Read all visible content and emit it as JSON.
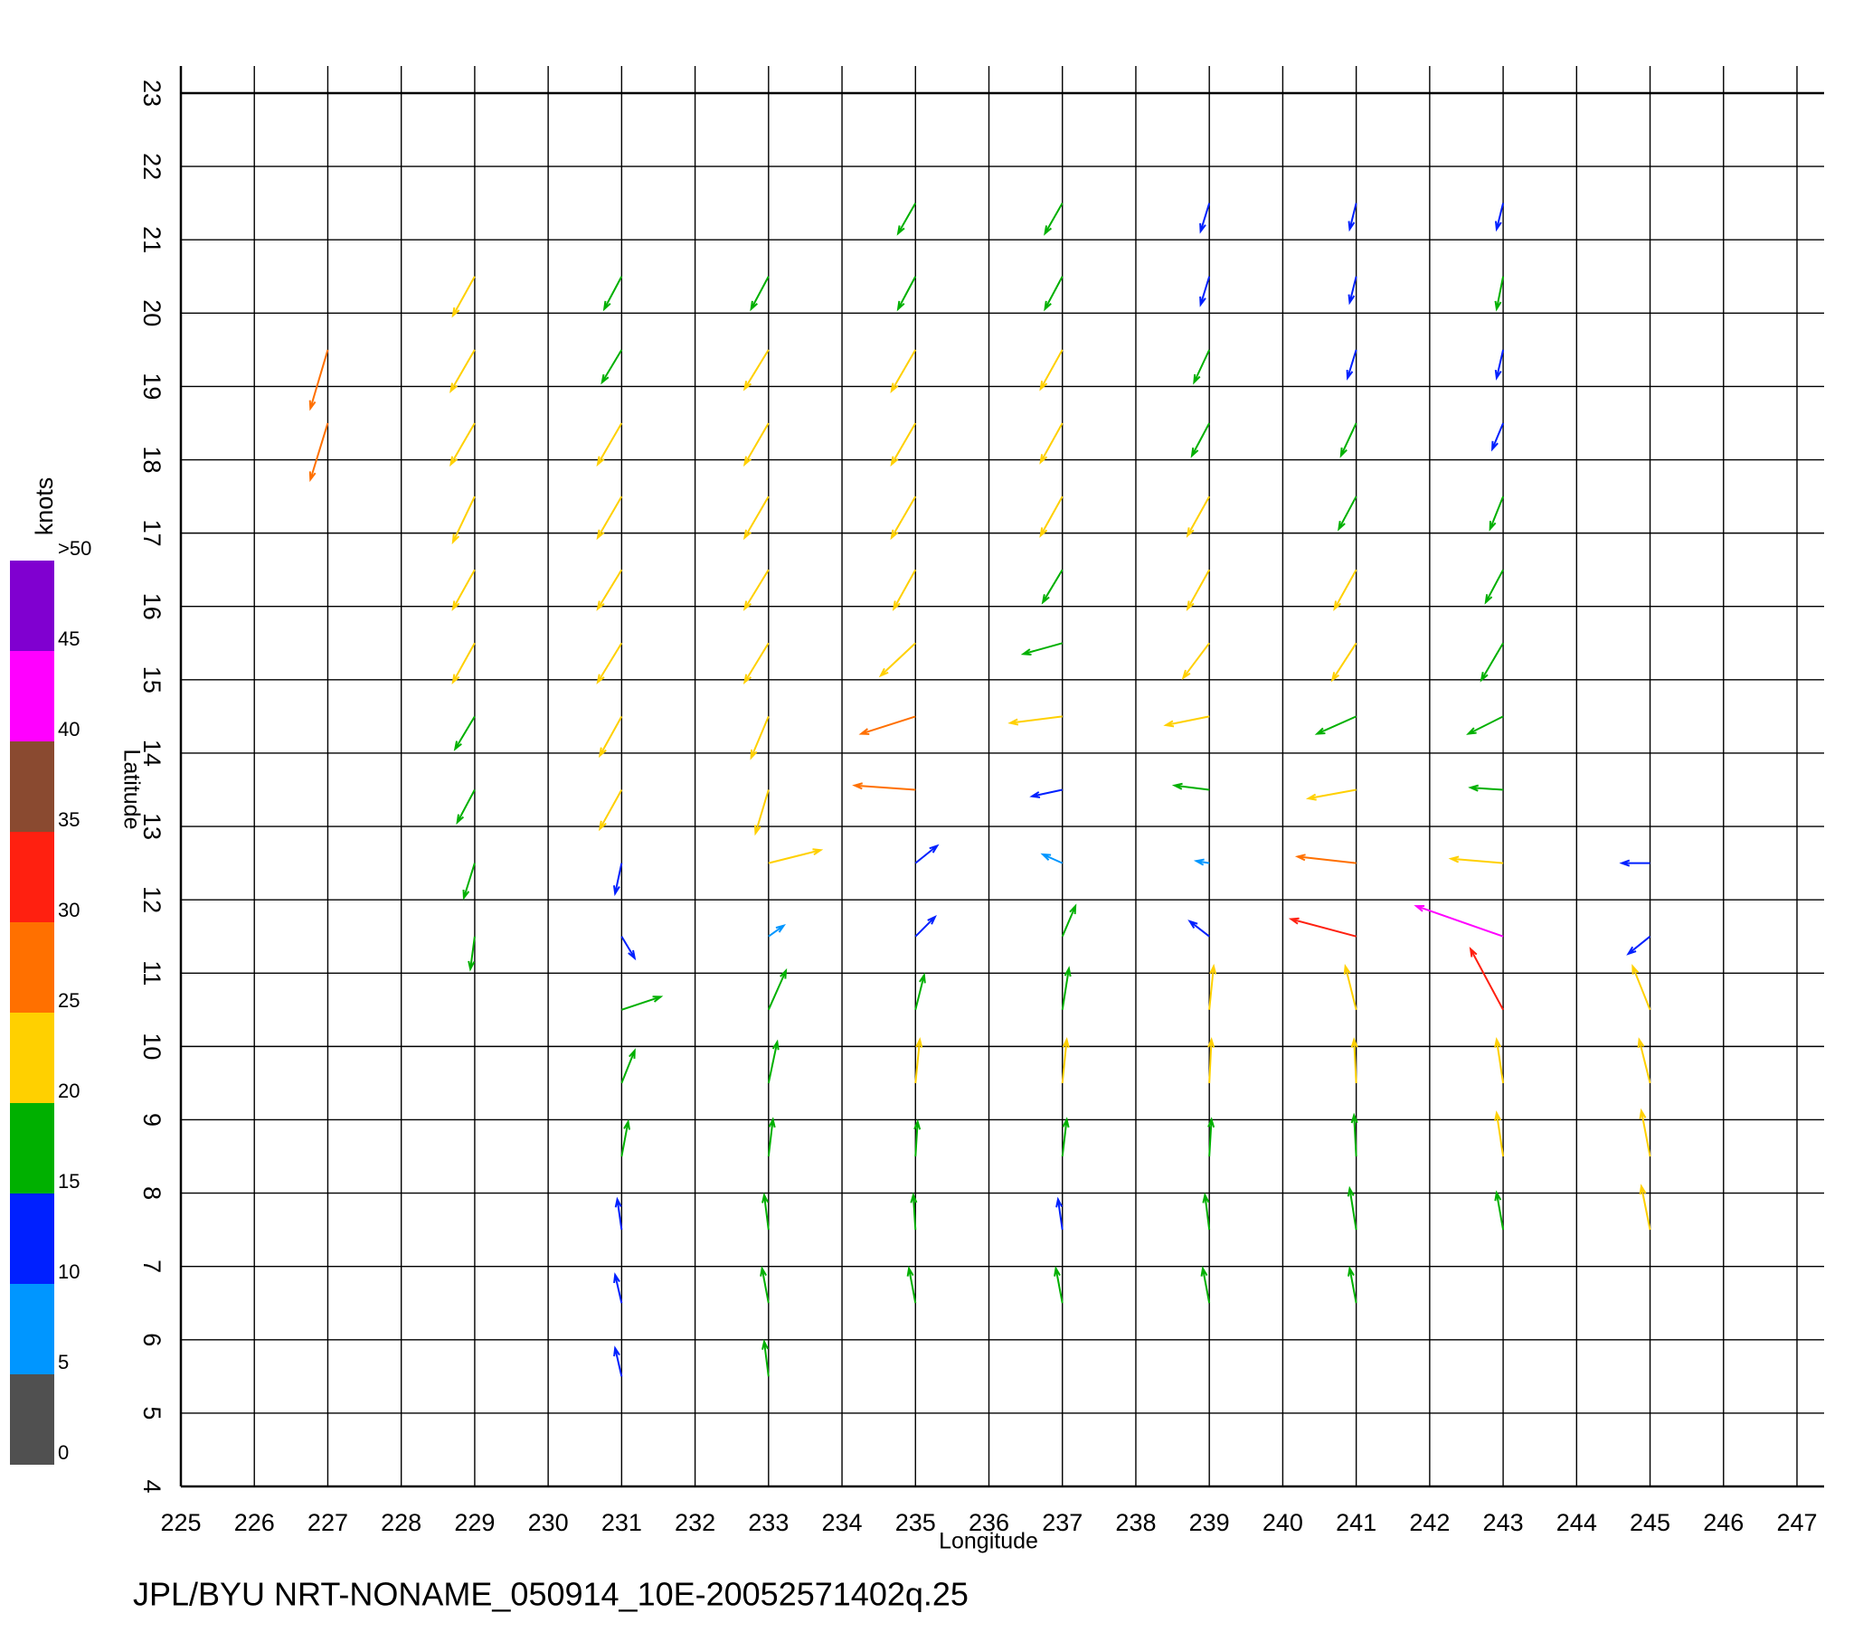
{
  "chart_data": {
    "type": "quiver",
    "footer": "JPL/BYU NRT-NONAME_050914_10E-20052571402q.25",
    "x_label": "Longitude",
    "y_label": "Latitude",
    "xlim": [
      225,
      247
    ],
    "xticks": [
      225,
      226,
      227,
      228,
      229,
      230,
      231,
      232,
      233,
      234,
      235,
      236,
      237,
      238,
      239,
      240,
      241,
      242,
      243,
      244,
      245,
      246,
      247
    ],
    "ylim": [
      4,
      23
    ],
    "yticks": [
      4,
      5,
      6,
      7,
      8,
      9,
      10,
      11,
      12,
      13,
      14,
      15,
      16,
      17,
      18,
      19,
      20,
      21,
      22,
      23
    ],
    "grid": true,
    "colorbar": {
      "label": "knots",
      "ticks": [
        0,
        5,
        10,
        15,
        20,
        25,
        30,
        35,
        40,
        45,
        {
          "value": 50,
          "label": ">50"
        }
      ],
      "colors": [
        "#505050",
        "#0096ff",
        "#0020ff",
        "#00b000",
        "#ffd000",
        "#ff7000",
        "#ff2010",
        "#8a4a30",
        "#ff00ff",
        "#8000d0"
      ]
    },
    "vectors": {
      "lon": [
        235,
        237,
        239,
        241,
        243,
        229,
        231,
        233,
        235,
        237,
        239,
        241,
        243,
        227,
        229,
        231,
        233,
        235,
        237,
        239,
        241,
        243,
        227,
        229,
        231,
        233,
        235,
        237,
        239,
        241,
        243,
        229,
        231,
        233,
        235,
        237,
        239,
        241,
        243,
        229,
        231,
        233,
        235,
        237,
        239,
        241,
        243,
        229,
        231,
        233,
        235,
        237,
        239,
        241,
        243,
        229,
        231,
        233,
        235,
        237,
        239,
        241,
        243,
        229,
        231,
        233,
        235,
        237,
        239,
        241,
        243,
        229,
        231,
        233,
        235,
        237,
        239,
        241,
        243,
        245,
        229,
        231,
        233,
        235,
        237,
        239,
        241,
        243,
        245,
        231,
        233,
        235,
        237,
        239,
        241,
        243,
        245,
        231,
        233,
        235,
        237,
        239,
        241,
        243,
        245,
        231,
        233,
        235,
        237,
        239,
        241,
        243,
        245,
        231,
        233,
        235,
        237,
        239,
        241,
        243,
        245,
        231,
        233,
        235,
        237,
        239,
        241,
        231,
        233
      ],
      "lat": [
        21.5,
        21.5,
        21.5,
        21.5,
        21.5,
        20.5,
        20.5,
        20.5,
        20.5,
        20.5,
        20.5,
        20.5,
        20.5,
        19.5,
        19.5,
        19.5,
        19.5,
        19.5,
        19.5,
        19.5,
        19.5,
        19.5,
        18.5,
        18.5,
        18.5,
        18.5,
        18.5,
        18.5,
        18.5,
        18.5,
        18.5,
        17.5,
        17.5,
        17.5,
        17.5,
        17.5,
        17.5,
        17.5,
        17.5,
        16.5,
        16.5,
        16.5,
        16.5,
        16.5,
        16.5,
        16.5,
        16.5,
        15.5,
        15.5,
        15.5,
        15.5,
        15.5,
        15.5,
        15.5,
        15.5,
        14.5,
        14.5,
        14.5,
        14.5,
        14.5,
        14.5,
        14.5,
        14.5,
        13.5,
        13.5,
        13.5,
        13.5,
        13.5,
        13.5,
        13.5,
        13.5,
        12.5,
        12.5,
        12.5,
        12.5,
        12.5,
        12.5,
        12.5,
        12.5,
        12.5,
        11.5,
        11.5,
        11.5,
        11.5,
        11.5,
        11.5,
        11.5,
        11.5,
        11.5,
        10.5,
        10.5,
        10.5,
        10.5,
        10.5,
        10.5,
        10.5,
        10.5,
        9.5,
        9.5,
        9.5,
        9.5,
        9.5,
        9.5,
        9.5,
        9.5,
        8.5,
        8.5,
        8.5,
        8.5,
        8.5,
        8.5,
        8.5,
        8.5,
        7.5,
        7.5,
        7.5,
        7.5,
        7.5,
        7.5,
        7.5,
        7.5,
        6.5,
        6.5,
        6.5,
        6.5,
        6.5,
        6.5,
        5.5,
        5.5
      ],
      "u": [
        -8,
        -8,
        -4,
        -3,
        -3,
        -10,
        -8,
        -8,
        -8,
        -8,
        -4,
        -3,
        -3,
        -8,
        -11,
        -9,
        -11,
        -11,
        -10,
        -7,
        -4,
        -3,
        -8,
        -11,
        -11,
        -11,
        -11,
        -10,
        -8,
        -7,
        -5,
        -10,
        -11,
        -11,
        -11,
        -10,
        -10,
        -8,
        -6,
        -10,
        -11,
        -11,
        -10,
        -9,
        -10,
        -10,
        -8,
        -10,
        -11,
        -11,
        -16,
        -18,
        -12,
        -11,
        -10,
        -9,
        -10,
        -8,
        -25,
        -24,
        -20,
        -18,
        -16,
        -8,
        -10,
        -6,
        -28,
        -14,
        -16,
        -22,
        -15,
        -5,
        -3,
        24,
        10,
        -9,
        -6,
        -27,
        -24,
        -13,
        -2,
        6,
        7,
        9,
        6,
        -9,
        -30,
        -40,
        -10,
        18,
        8,
        4,
        3,
        2,
        -5,
        -15,
        -8,
        6,
        4,
        2,
        2,
        1,
        -1,
        -3,
        -5,
        3,
        2,
        1,
        2,
        1,
        -1,
        -3,
        -4,
        -2,
        -2,
        -1,
        -2,
        -2,
        -3,
        -3,
        -4,
        -3,
        -3,
        -3,
        -3,
        -3,
        -3,
        -3,
        -2
      ],
      "v": [
        -14,
        -14,
        -13,
        -12,
        -12,
        -18,
        -15,
        -15,
        -15,
        -15,
        -13,
        -12,
        -15,
        -27,
        -19,
        -15,
        -18,
        -19,
        -18,
        -15,
        -13,
        -13,
        -26,
        -19,
        -19,
        -19,
        -19,
        -18,
        -15,
        -15,
        -12,
        -21,
        -19,
        -19,
        -19,
        -18,
        -18,
        -15,
        -15,
        -18,
        -18,
        -18,
        -18,
        -15,
        -18,
        -18,
        -15,
        -18,
        -18,
        -18,
        -15,
        -5,
        -16,
        -17,
        -17,
        -15,
        -18,
        -19,
        -8,
        -3,
        -4,
        -8,
        -8,
        -15,
        -18,
        -20,
        2,
        -3,
        2,
        -4,
        1,
        -16,
        -14,
        6,
        8,
        4,
        1,
        3,
        2,
        0,
        -15,
        -10,
        5,
        9,
        14,
        7,
        8,
        14,
        -8,
        6,
        18,
        16,
        19,
        20,
        20,
        28,
        20,
        15,
        19,
        20,
        20,
        20,
        20,
        20,
        20,
        16,
        17,
        16,
        17,
        17,
        19,
        20,
        21,
        14,
        16,
        16,
        14,
        16,
        19,
        17,
        20,
        13,
        16,
        16,
        16,
        16,
        16,
        13,
        16
      ]
    }
  }
}
